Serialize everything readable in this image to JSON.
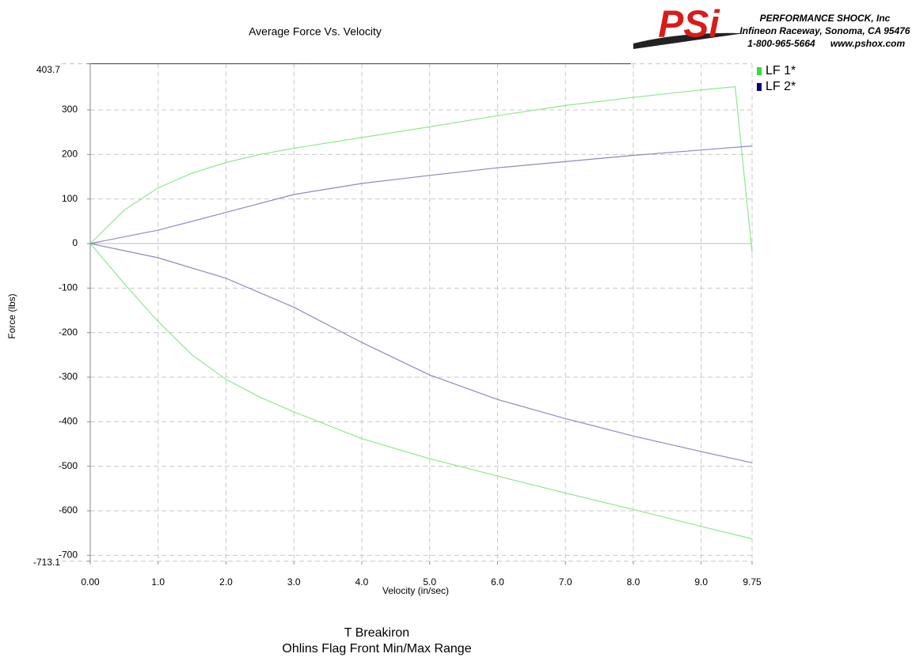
{
  "chart_data": {
    "type": "line",
    "title": "Average Force Vs. Velocity",
    "xlabel": "Velocity (in/sec)",
    "ylabel": "Force (lbs)",
    "footer": [
      "T Breakiron",
      "Ohlins Flag Front Min/Max Range"
    ],
    "xlim": [
      0,
      9.75
    ],
    "ylim": [
      -713.1,
      403.7
    ],
    "xticks": [
      {
        "value": 0,
        "label": "0.00"
      },
      {
        "value": 1,
        "label": "1.0"
      },
      {
        "value": 2,
        "label": "2.0"
      },
      {
        "value": 3,
        "label": "3.0"
      },
      {
        "value": 4,
        "label": "4.0"
      },
      {
        "value": 5,
        "label": "5.0"
      },
      {
        "value": 6,
        "label": "6.0"
      },
      {
        "value": 7,
        "label": "7.0"
      },
      {
        "value": 8,
        "label": "8.0"
      },
      {
        "value": 9,
        "label": "9.0"
      },
      9.75
    ],
    "yticks": [
      -713.1,
      -700,
      -600,
      -500,
      -400,
      -300,
      -200,
      -100,
      0,
      100,
      200,
      300,
      403.7
    ],
    "grid": true,
    "legend": "right",
    "series": [
      {
        "name": "LF 1*",
        "color": "#8ee88e",
        "legend_color": "#33e033",
        "x": [
          0,
          0.5,
          1,
          1.5,
          2,
          2.5,
          3,
          4,
          5,
          6,
          7,
          8,
          9,
          9.5,
          9.75,
          null,
          0,
          0.5,
          1,
          1.5,
          2,
          2.5,
          3,
          4,
          5,
          6,
          7,
          8,
          9,
          9.75
        ],
        "values": [
          0,
          75,
          125,
          158,
          182,
          200,
          214,
          238,
          262,
          287,
          310,
          328,
          345,
          352,
          -20,
          null,
          0,
          -90,
          -175,
          -250,
          -305,
          -345,
          -378,
          -438,
          -483,
          -522,
          -560,
          -597,
          -635,
          -663
        ]
      },
      {
        "name": "LF 2*",
        "color": "#8a8ac8",
        "legend_color": "#000080",
        "x": [
          0,
          1,
          2,
          3,
          4,
          5,
          6,
          7,
          8,
          9,
          9.75,
          null,
          0,
          1,
          2,
          3,
          4,
          5,
          6,
          7,
          8,
          9,
          9.75
        ],
        "values": [
          0,
          30,
          70,
          110,
          135,
          153,
          170,
          184,
          198,
          210,
          219,
          null,
          0,
          -32,
          -78,
          -143,
          -222,
          -295,
          -350,
          -393,
          -432,
          -467,
          -492
        ]
      }
    ]
  },
  "logo": {
    "mark": "PSi",
    "company": "PERFORMANCE SHOCK, Inc",
    "address": "Infineon Raceway, Sonoma, CA 95476",
    "phone": "1-800-965-5664",
    "web": "www.pshox.com"
  }
}
